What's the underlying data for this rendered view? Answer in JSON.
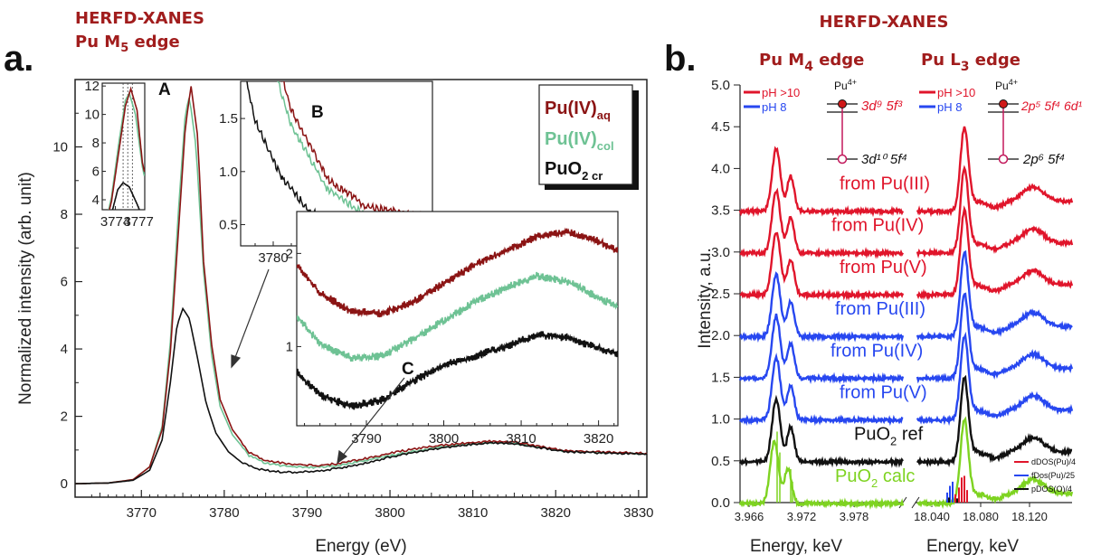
{
  "colors": {
    "aq": "#8b1414",
    "col": "#6ec294",
    "cr": "#111111",
    "red": "#e0152b",
    "blue": "#2747f0",
    "black": "#111111",
    "green": "#7ed321",
    "header": "#a11d1d"
  },
  "panel_a": {
    "header_line1": "HERFD-XANES",
    "header_line2_main": "Pu M",
    "header_line2_sub": "5",
    "header_line2_tail": " edge",
    "panel_label": "a.",
    "peak_label_A": "A",
    "peak_label_B": "B",
    "peak_label_C": "C",
    "legend": [
      {
        "main": "Pu(IV)",
        "sub": "aq",
        "color_key": "aq"
      },
      {
        "main": "Pu(IV)",
        "sub": "col",
        "color_key": "col"
      },
      {
        "main": "PuO",
        "sub2": "2",
        "sub": " cr",
        "color_key": "cr"
      }
    ]
  },
  "panel_b": {
    "header": "HERFD-XANES",
    "panel_label": "b.",
    "title_m4_main": "Pu M",
    "title_m4_sub": "4",
    "title_m4_tail": " edge",
    "title_l3_main": "Pu L",
    "title_l3_sub": "3",
    "title_l3_tail": " edge",
    "legend_ph10": "pH >10",
    "legend_ph8": "pH 8",
    "pu4_label": "Pu",
    "pu4_sup": "4+",
    "m4_upper_state": "3d⁹ 5f³",
    "m4_lower_state": "3d¹⁰ 5f⁴",
    "l3_upper_state": "2p⁵ 5f⁴ 6d¹",
    "l3_lower_state": "2p⁶ 5f⁴",
    "dos_legend": [
      "dDOS(Pu)/4",
      "fDos(Pu)/25",
      "pDOS(O)/4"
    ]
  },
  "chart_data": [
    {
      "type": "line",
      "title": "",
      "xlabel": "Energy (eV)",
      "ylabel": "Normalized intensity (arb. unit)",
      "xlim": [
        3762,
        3831
      ],
      "ylim": [
        -0.4,
        12
      ],
      "xticks": [
        3770,
        3780,
        3790,
        3800,
        3810,
        3820,
        3830
      ],
      "yticks": [
        0,
        2,
        4,
        6,
        8,
        10
      ],
      "legend_position": "top-right",
      "series": [
        {
          "name": "Pu(IV)aq",
          "color_key": "aq",
          "x": [
            3762,
            3766,
            3769,
            3771,
            3772.5,
            3773.5,
            3774.5,
            3775.3,
            3776,
            3776.8,
            3777.5,
            3778.5,
            3779.5,
            3781,
            3783,
            3785,
            3788,
            3791,
            3794,
            3797,
            3800,
            3803,
            3806,
            3809,
            3812,
            3815,
            3818,
            3821,
            3825,
            3831
          ],
          "y": [
            0,
            0.02,
            0.12,
            0.5,
            1.6,
            3.9,
            7.6,
            10.6,
            11.8,
            10.3,
            6.6,
            4.1,
            2.5,
            1.6,
            0.95,
            0.7,
            0.6,
            0.55,
            0.62,
            0.76,
            0.92,
            1.05,
            1.15,
            1.22,
            1.27,
            1.25,
            1.13,
            1.0,
            0.96,
            0.92
          ]
        },
        {
          "name": "Pu(IV)col",
          "color_key": "col",
          "x": [
            3762,
            3766,
            3769,
            3771,
            3772.5,
            3773.5,
            3774.5,
            3775.3,
            3775.8,
            3776.6,
            3777.5,
            3778.5,
            3779.5,
            3781,
            3783,
            3785,
            3788,
            3791,
            3794,
            3797,
            3800,
            3803,
            3806,
            3809,
            3812,
            3815,
            3818,
            3821,
            3825,
            3831
          ],
          "y": [
            0,
            0.02,
            0.12,
            0.5,
            1.7,
            4.2,
            8.2,
            11.0,
            11.5,
            10.0,
            6.3,
            3.8,
            2.3,
            1.45,
            0.85,
            0.62,
            0.52,
            0.5,
            0.56,
            0.7,
            0.85,
            0.98,
            1.1,
            1.17,
            1.22,
            1.21,
            1.1,
            0.98,
            0.94,
            0.9
          ]
        },
        {
          "name": "PuO2 cr",
          "color_key": "cr",
          "x": [
            3762,
            3766,
            3769,
            3771,
            3772.5,
            3773.5,
            3774.3,
            3775,
            3775.8,
            3776.8,
            3777.8,
            3779,
            3780.5,
            3782,
            3784,
            3786,
            3788,
            3791,
            3794,
            3797,
            3800,
            3803,
            3806,
            3809,
            3812,
            3815,
            3818,
            3821,
            3825,
            3831
          ],
          "y": [
            0,
            0.02,
            0.1,
            0.4,
            1.3,
            3.0,
            4.7,
            5.2,
            4.9,
            3.7,
            2.4,
            1.5,
            0.95,
            0.65,
            0.45,
            0.38,
            0.35,
            0.38,
            0.48,
            0.62,
            0.8,
            0.95,
            1.07,
            1.16,
            1.22,
            1.2,
            1.08,
            0.97,
            0.93,
            0.9
          ]
        }
      ]
    },
    {
      "type": "line",
      "title": "",
      "xlabel": "Energy, keV",
      "ylabel": "Intensity, a.u.",
      "ylim": [
        0,
        5.0
      ],
      "yticks": [
        0.0,
        0.5,
        1.0,
        1.5,
        2.0,
        2.5,
        3.0,
        3.5,
        4.0,
        4.5,
        5.0
      ],
      "xticks_m4": [
        "3.966",
        "3.972",
        "3.978"
      ],
      "xticks_l3": [
        "18.040",
        "18.080",
        "18.120"
      ],
      "traces": [
        {
          "label": "from Pu(III)",
          "color_key": "red",
          "offset": 3.5
        },
        {
          "label": "from Pu(IV)",
          "color_key": "red",
          "offset": 3.0
        },
        {
          "label": "from Pu(V)",
          "color_key": "red",
          "offset": 2.5
        },
        {
          "label": "from Pu(III)",
          "color_key": "blue",
          "offset": 2.0
        },
        {
          "label": "from Pu(IV)",
          "color_key": "blue",
          "offset": 1.5
        },
        {
          "label": "from Pu(V)",
          "color_key": "blue",
          "offset": 1.0
        },
        {
          "label": "PuO",
          "sub": "2",
          "tail": " ref",
          "color_key": "black",
          "offset": 0.5
        },
        {
          "label": "PuO",
          "sub": "2",
          "tail": " calc",
          "color_key": "green",
          "offset": 0.0
        }
      ]
    }
  ]
}
